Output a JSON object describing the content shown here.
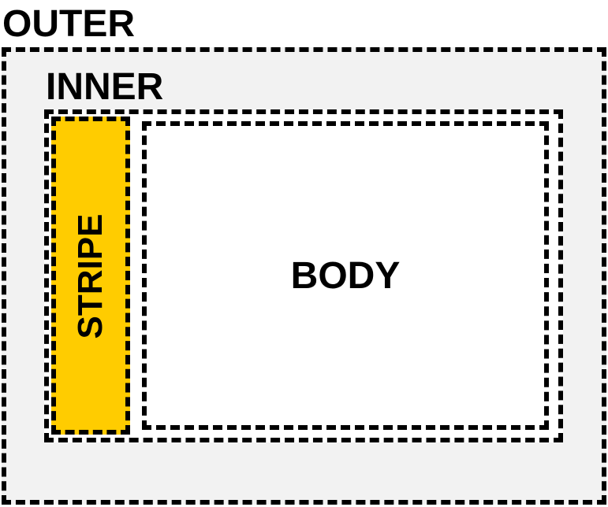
{
  "outer": {
    "label": "OUTER",
    "fill": "#f2f2f2",
    "border": "#000000"
  },
  "inner": {
    "label": "INNER",
    "fill": "#ffffff",
    "border": "#000000"
  },
  "stripe": {
    "label": "STRIPE",
    "fill": "#ffcc00",
    "border": "#000000"
  },
  "body": {
    "label": "BODY",
    "fill": "#ffffff",
    "border": "#000000"
  }
}
